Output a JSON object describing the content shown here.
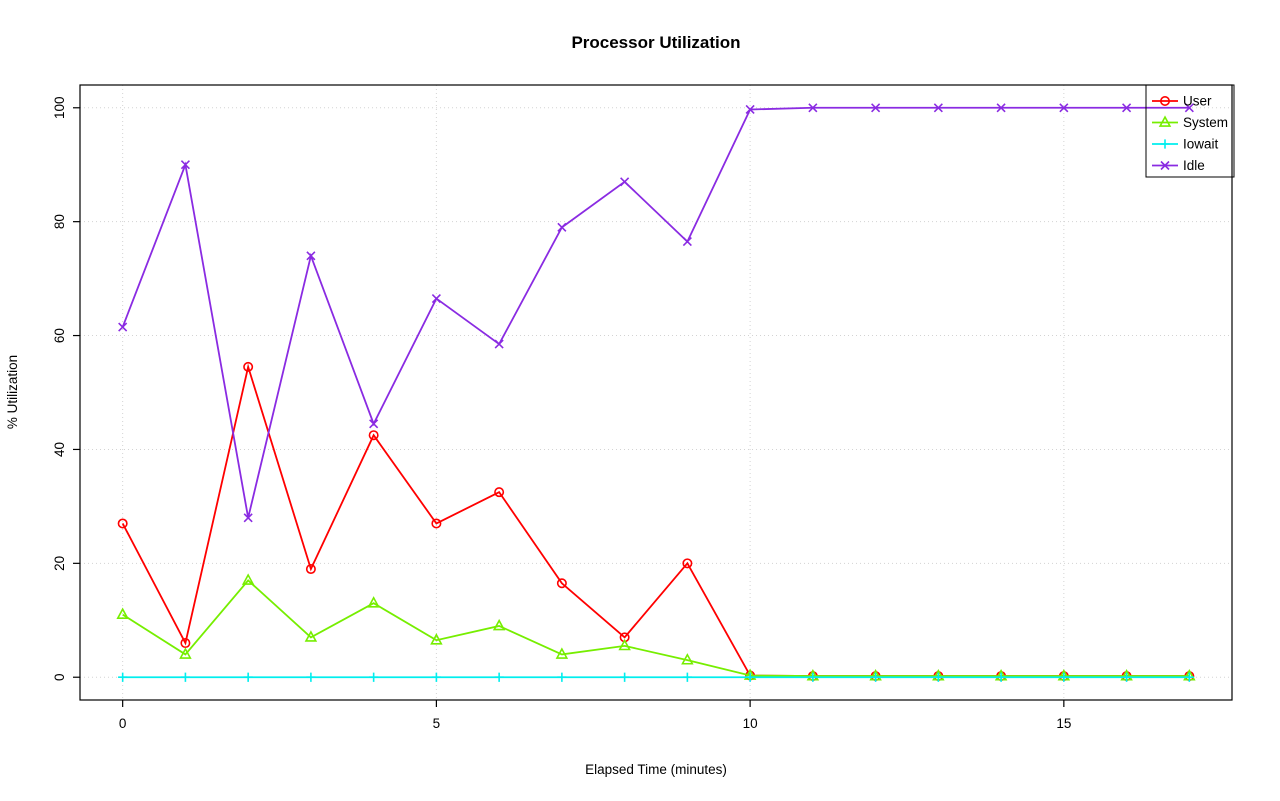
{
  "chart_data": {
    "type": "line",
    "title": "Processor Utilization",
    "xlabel": "Elapsed Time (minutes)",
    "ylabel": "% Utilization",
    "x": [
      0,
      1,
      2,
      3,
      4,
      5,
      6,
      7,
      8,
      9,
      10,
      11,
      12,
      13,
      14,
      15,
      16,
      17
    ],
    "xticks": [
      0,
      5,
      10,
      15
    ],
    "yticks": [
      0,
      20,
      40,
      60,
      80,
      100
    ],
    "xlim": [
      -0.68,
      17.68
    ],
    "ylim": [
      -4,
      104
    ],
    "grid": true,
    "grid_color": "#d3d3d3",
    "axis_color": "#000000",
    "legend": {
      "position": "topright",
      "entries": [
        "User",
        "System",
        "Iowait",
        "Idle"
      ]
    },
    "series": [
      {
        "name": "User",
        "color": "#ff0000",
        "marker": "circle",
        "values": [
          27,
          6,
          54.5,
          19,
          42.5,
          27,
          32.5,
          16.5,
          7,
          20,
          0.3,
          0.2,
          0.2,
          0.2,
          0.2,
          0.2,
          0.2,
          0.2
        ]
      },
      {
        "name": "System",
        "color": "#76ee00",
        "marker": "triangle",
        "values": [
          11,
          4,
          17,
          7,
          13,
          6.5,
          9,
          4,
          5.5,
          3,
          0.3,
          0.2,
          0.2,
          0.2,
          0.2,
          0.2,
          0.2,
          0.2
        ]
      },
      {
        "name": "Iowait",
        "color": "#00eeee",
        "marker": "plus",
        "values": [
          0,
          0,
          0,
          0,
          0,
          0,
          0,
          0,
          0,
          0,
          0,
          0,
          0,
          0,
          0,
          0,
          0,
          0
        ]
      },
      {
        "name": "Idle",
        "color": "#8a2be2",
        "marker": "x",
        "values": [
          61.5,
          90,
          28,
          74,
          44.5,
          66.5,
          58.5,
          79,
          87,
          76.5,
          99.7,
          100,
          100,
          100,
          100,
          100,
          100,
          100
        ]
      }
    ]
  }
}
